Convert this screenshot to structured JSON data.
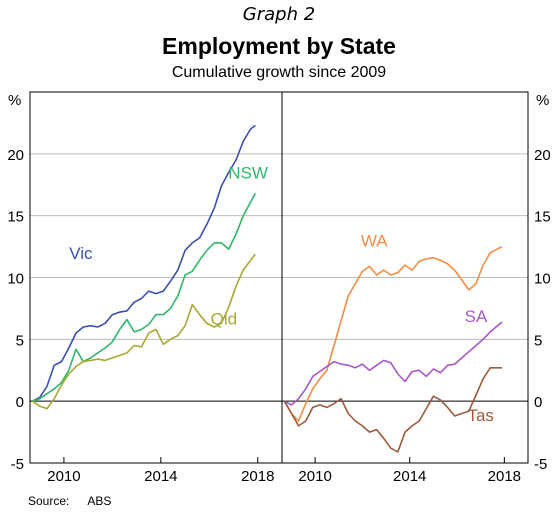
{
  "graph_label": "Graph 2",
  "source": {
    "label": "Source:",
    "value": "ABS"
  },
  "chart_data": {
    "type": "line",
    "title": "Employment by State",
    "subtitle": "Cumulative growth since 2009",
    "y_unit": "%",
    "ylim": [
      -5,
      25
    ],
    "yticks": [
      -5,
      0,
      5,
      10,
      15,
      20
    ],
    "xlim": [
      2008.6,
      2019.0
    ],
    "xticks": [
      2010,
      2014,
      2018
    ],
    "grid": true,
    "panels": [
      {
        "series": [
          {
            "name": "Vic",
            "color": "#3a4fb0",
            "points": [
              [
                2008.7,
                0
              ],
              [
                2009.0,
                0.3
              ],
              [
                2009.3,
                1.2
              ],
              [
                2009.6,
                2.9
              ],
              [
                2009.9,
                3.2
              ],
              [
                2010.2,
                4.3
              ],
              [
                2010.5,
                5.5
              ],
              [
                2010.8,
                6.0
              ],
              [
                2011.1,
                6.1
              ],
              [
                2011.4,
                6.0
              ],
              [
                2011.7,
                6.3
              ],
              [
                2012.0,
                7.0
              ],
              [
                2012.3,
                7.2
              ],
              [
                2012.6,
                7.3
              ],
              [
                2012.9,
                8.0
              ],
              [
                2013.2,
                8.3
              ],
              [
                2013.5,
                8.9
              ],
              [
                2013.8,
                8.7
              ],
              [
                2014.1,
                8.9
              ],
              [
                2014.4,
                9.7
              ],
              [
                2014.7,
                10.6
              ],
              [
                2015.0,
                12.2
              ],
              [
                2015.3,
                12.8
              ],
              [
                2015.6,
                13.2
              ],
              [
                2015.9,
                14.3
              ],
              [
                2016.2,
                15.6
              ],
              [
                2016.5,
                17.4
              ],
              [
                2016.8,
                18.5
              ],
              [
                2017.1,
                19.5
              ],
              [
                2017.4,
                21.0
              ],
              [
                2017.7,
                22.0
              ],
              [
                2017.9,
                22.3
              ]
            ]
          },
          {
            "name": "NSW",
            "color": "#2fb86a",
            "points": [
              [
                2008.7,
                0
              ],
              [
                2009.0,
                0.2
              ],
              [
                2009.3,
                0.6
              ],
              [
                2009.6,
                1.0
              ],
              [
                2009.9,
                1.5
              ],
              [
                2010.2,
                2.5
              ],
              [
                2010.5,
                4.2
              ],
              [
                2010.8,
                3.2
              ],
              [
                2011.1,
                3.5
              ],
              [
                2011.4,
                3.9
              ],
              [
                2011.7,
                4.3
              ],
              [
                2012.0,
                4.8
              ],
              [
                2012.3,
                5.8
              ],
              [
                2012.6,
                6.6
              ],
              [
                2012.9,
                5.6
              ],
              [
                2013.2,
                5.8
              ],
              [
                2013.5,
                6.2
              ],
              [
                2013.8,
                7.0
              ],
              [
                2014.1,
                7.0
              ],
              [
                2014.4,
                7.5
              ],
              [
                2014.7,
                8.5
              ],
              [
                2015.0,
                10.2
              ],
              [
                2015.3,
                10.5
              ],
              [
                2015.6,
                11.4
              ],
              [
                2015.9,
                12.2
              ],
              [
                2016.2,
                12.8
              ],
              [
                2016.5,
                12.8
              ],
              [
                2016.8,
                12.3
              ],
              [
                2017.1,
                13.5
              ],
              [
                2017.4,
                15.0
              ],
              [
                2017.9,
                16.8
              ]
            ]
          },
          {
            "name": "Qld",
            "color": "#a8a832",
            "points": [
              [
                2008.7,
                0
              ],
              [
                2009.0,
                -0.4
              ],
              [
                2009.3,
                -0.6
              ],
              [
                2009.6,
                0.2
              ],
              [
                2009.9,
                1.3
              ],
              [
                2010.2,
                2.2
              ],
              [
                2010.5,
                2.8
              ],
              [
                2010.8,
                3.2
              ],
              [
                2011.1,
                3.3
              ],
              [
                2011.4,
                3.4
              ],
              [
                2011.7,
                3.3
              ],
              [
                2012.0,
                3.5
              ],
              [
                2012.3,
                3.7
              ],
              [
                2012.6,
                3.9
              ],
              [
                2012.9,
                4.5
              ],
              [
                2013.2,
                4.4
              ],
              [
                2013.5,
                5.5
              ],
              [
                2013.8,
                5.8
              ],
              [
                2014.1,
                4.6
              ],
              [
                2014.4,
                5.0
              ],
              [
                2014.7,
                5.3
              ],
              [
                2015.0,
                6.1
              ],
              [
                2015.3,
                7.8
              ],
              [
                2015.6,
                7.0
              ],
              [
                2015.9,
                6.3
              ],
              [
                2016.2,
                6.0
              ],
              [
                2016.5,
                6.3
              ],
              [
                2016.8,
                7.6
              ],
              [
                2017.1,
                9.3
              ],
              [
                2017.4,
                10.6
              ],
              [
                2017.9,
                11.9
              ]
            ]
          }
        ],
        "labels": [
          {
            "text": "Vic",
            "series": "Vic",
            "x": 2010.7,
            "y": 11.5
          },
          {
            "text": "NSW",
            "series": "NSW",
            "x": 2017.6,
            "y": 18.0
          },
          {
            "text": "Qld",
            "series": "Qld",
            "x": 2016.6,
            "y": 6.2
          }
        ]
      },
      {
        "series": [
          {
            "name": "WA",
            "color": "#f58d42",
            "points": [
              [
                2008.7,
                0
              ],
              [
                2009.0,
                -1.0
              ],
              [
                2009.3,
                -1.6
              ],
              [
                2009.6,
                -0.2
              ],
              [
                2009.9,
                1.0
              ],
              [
                2010.2,
                1.8
              ],
              [
                2010.5,
                2.5
              ],
              [
                2010.8,
                4.5
              ],
              [
                2011.1,
                6.5
              ],
              [
                2011.4,
                8.5
              ],
              [
                2011.7,
                9.5
              ],
              [
                2012.0,
                10.5
              ],
              [
                2012.3,
                10.9
              ],
              [
                2012.6,
                10.2
              ],
              [
                2012.9,
                10.6
              ],
              [
                2013.2,
                10.2
              ],
              [
                2013.5,
                10.4
              ],
              [
                2013.8,
                11.0
              ],
              [
                2014.1,
                10.6
              ],
              [
                2014.4,
                11.3
              ],
              [
                2014.7,
                11.5
              ],
              [
                2015.0,
                11.6
              ],
              [
                2015.3,
                11.4
              ],
              [
                2015.6,
                11.1
              ],
              [
                2015.9,
                10.6
              ],
              [
                2016.2,
                9.8
              ],
              [
                2016.5,
                9.0
              ],
              [
                2016.8,
                9.5
              ],
              [
                2017.1,
                11.0
              ],
              [
                2017.4,
                12.0
              ],
              [
                2017.9,
                12.5
              ]
            ]
          },
          {
            "name": "SA",
            "color": "#a856c8",
            "points": [
              [
                2008.7,
                0
              ],
              [
                2009.0,
                -0.3
              ],
              [
                2009.3,
                0.2
              ],
              [
                2009.6,
                1.0
              ],
              [
                2009.9,
                2.0
              ],
              [
                2010.2,
                2.4
              ],
              [
                2010.5,
                2.8
              ],
              [
                2010.8,
                3.2
              ],
              [
                2011.1,
                3.0
              ],
              [
                2011.4,
                2.9
              ],
              [
                2011.7,
                2.7
              ],
              [
                2012.0,
                3.0
              ],
              [
                2012.3,
                2.5
              ],
              [
                2012.6,
                2.9
              ],
              [
                2012.9,
                3.3
              ],
              [
                2013.2,
                3.1
              ],
              [
                2013.5,
                2.2
              ],
              [
                2013.8,
                1.6
              ],
              [
                2014.1,
                2.4
              ],
              [
                2014.4,
                2.5
              ],
              [
                2014.7,
                2.0
              ],
              [
                2015.0,
                2.6
              ],
              [
                2015.3,
                2.3
              ],
              [
                2015.6,
                2.9
              ],
              [
                2015.9,
                3.0
              ],
              [
                2016.2,
                3.5
              ],
              [
                2016.5,
                4.0
              ],
              [
                2016.8,
                4.5
              ],
              [
                2017.1,
                5.0
              ],
              [
                2017.4,
                5.6
              ],
              [
                2017.9,
                6.4
              ]
            ]
          },
          {
            "name": "Tas",
            "color": "#9c5a3c",
            "points": [
              [
                2008.7,
                0
              ],
              [
                2009.0,
                -1.0
              ],
              [
                2009.3,
                -2.0
              ],
              [
                2009.6,
                -1.6
              ],
              [
                2009.9,
                -0.5
              ],
              [
                2010.2,
                -0.3
              ],
              [
                2010.5,
                -0.5
              ],
              [
                2010.8,
                -0.2
              ],
              [
                2011.1,
                0.2
              ],
              [
                2011.4,
                -1.0
              ],
              [
                2011.7,
                -1.6
              ],
              [
                2012.0,
                -2.0
              ],
              [
                2012.3,
                -2.5
              ],
              [
                2012.6,
                -2.3
              ],
              [
                2012.9,
                -3.0
              ],
              [
                2013.2,
                -3.8
              ],
              [
                2013.5,
                -4.1
              ],
              [
                2013.8,
                -2.5
              ],
              [
                2014.1,
                -2.0
              ],
              [
                2014.4,
                -1.6
              ],
              [
                2014.7,
                -0.6
              ],
              [
                2015.0,
                0.4
              ],
              [
                2015.3,
                0.1
              ],
              [
                2015.6,
                -0.5
              ],
              [
                2015.9,
                -1.2
              ],
              [
                2016.2,
                -1.0
              ],
              [
                2016.5,
                -0.8
              ],
              [
                2016.8,
                0.5
              ],
              [
                2017.1,
                1.8
              ],
              [
                2017.4,
                2.7
              ],
              [
                2017.9,
                2.7
              ]
            ]
          }
        ],
        "labels": [
          {
            "text": "WA",
            "series": "WA",
            "x": 2012.5,
            "y": 12.5
          },
          {
            "text": "SA",
            "series": "SA",
            "x": 2016.8,
            "y": 6.4
          },
          {
            "text": "Tas",
            "series": "Tas",
            "x": 2017.0,
            "y": -1.6
          }
        ]
      }
    ]
  }
}
